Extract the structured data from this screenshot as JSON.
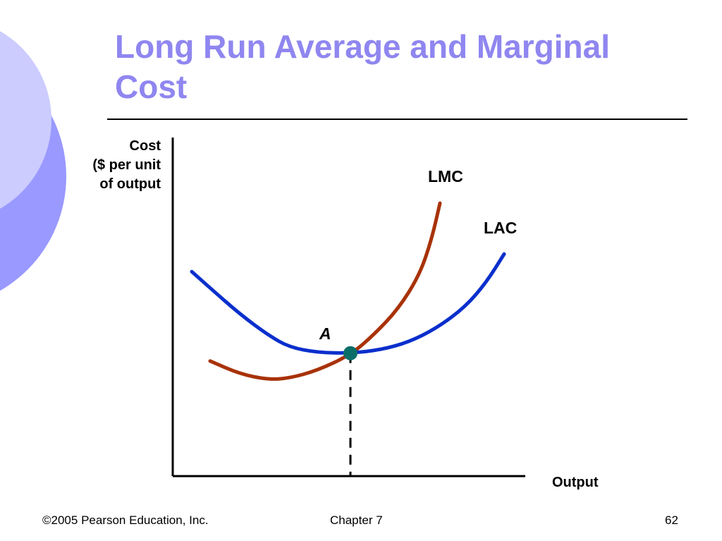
{
  "title": "Long Run Average and Marginal Cost",
  "footer": {
    "copyright": "©2005 Pearson Education, Inc.",
    "chapter": "Chapter 7",
    "page": "62"
  },
  "chart_data": {
    "type": "line",
    "title": "Long Run Average and Marginal Cost",
    "ylabel": [
      "Cost",
      "($ per unit",
      "of output"
    ],
    "xlabel": "Output",
    "xlim": [
      0,
      100
    ],
    "ylim": [
      0,
      100
    ],
    "grid": false,
    "series": [
      {
        "name": "LAC",
        "color": "#0a2fcc",
        "points": [
          [
            5.4,
            60.4
          ],
          [
            11,
            55.2
          ],
          [
            19,
            47.9
          ],
          [
            27,
            41.7
          ],
          [
            33,
            38.1
          ],
          [
            41,
            36.5
          ],
          [
            50.4,
            36.3
          ],
          [
            59,
            37.3
          ],
          [
            67,
            39.6
          ],
          [
            75,
            43.8
          ],
          [
            83,
            50
          ],
          [
            89,
            57.3
          ],
          [
            94,
            65.6
          ]
        ]
      },
      {
        "name": "LMC",
        "color": "#a83208",
        "points": [
          [
            10.6,
            34
          ],
          [
            19,
            30.2
          ],
          [
            27,
            28.5
          ],
          [
            33,
            28.9
          ],
          [
            41,
            31.2
          ],
          [
            50.4,
            35.8
          ],
          [
            57,
            41.7
          ],
          [
            64,
            49.4
          ],
          [
            70,
            59.4
          ],
          [
            73.4,
            69.8
          ],
          [
            75.8,
            80.6
          ]
        ]
      }
    ],
    "annotations": [
      {
        "label": "A",
        "x": 50.4,
        "y": 36.3,
        "color": "#0a6e68"
      }
    ]
  }
}
